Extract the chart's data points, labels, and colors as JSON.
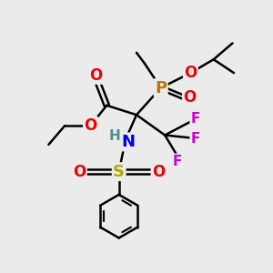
{
  "bg_color": "#ebebeb",
  "atom_colors": {
    "C": "#000000",
    "H": "#4f9090",
    "N": "#0000ee",
    "O": "#ee0000",
    "P": "#bb7700",
    "S": "#aaaa00",
    "F": "#cc00cc"
  },
  "bond_color": "#000000",
  "bond_width": 1.8,
  "font_size_atom": 12,
  "font_size_small": 10
}
